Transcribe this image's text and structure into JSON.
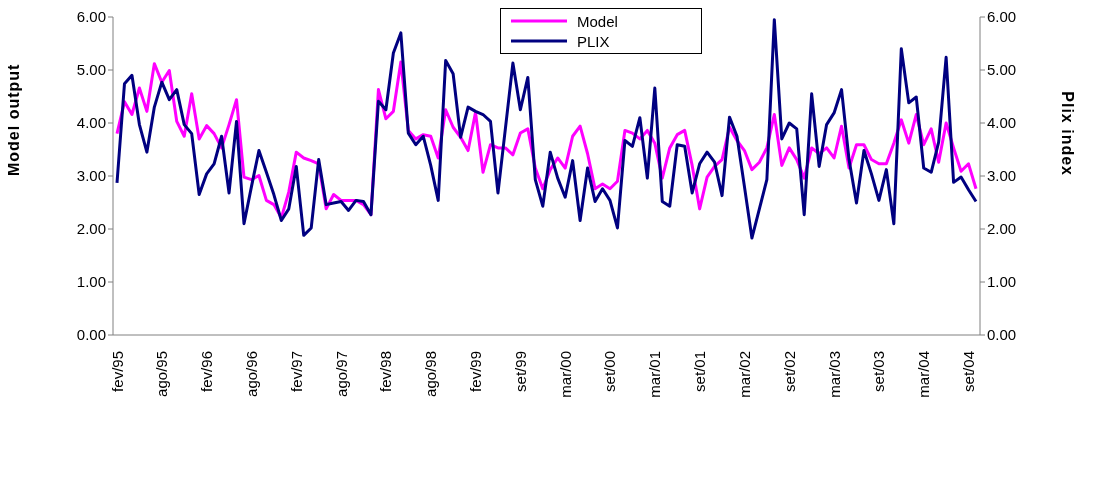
{
  "chart_data": {
    "type": "line",
    "xlabel": null,
    "ylabel": "Model output",
    "y2label": "Plix index",
    "categories": [
      "fev/95",
      null,
      null,
      null,
      null,
      null,
      "ago/95",
      null,
      null,
      null,
      null,
      null,
      "fev/96",
      null,
      null,
      null,
      null,
      null,
      "ago/96",
      null,
      null,
      null,
      null,
      null,
      "fev/97",
      null,
      null,
      null,
      null,
      null,
      "ago/97",
      null,
      null,
      null,
      null,
      null,
      "fev/98",
      null,
      null,
      null,
      null,
      null,
      "ago/98",
      null,
      null,
      null,
      null,
      null,
      "fev/99",
      null,
      null,
      null,
      null,
      null,
      "set/99",
      null,
      null,
      null,
      null,
      null,
      "mar/00",
      null,
      null,
      null,
      null,
      null,
      "set/00",
      null,
      null,
      null,
      null,
      null,
      "mar/01",
      null,
      null,
      null,
      null,
      null,
      "set/01",
      null,
      null,
      null,
      null,
      null,
      "mar/02",
      null,
      null,
      null,
      null,
      null,
      "set/02",
      null,
      null,
      null,
      null,
      null,
      "mar/03",
      null,
      null,
      null,
      null,
      null,
      "set/03",
      null,
      null,
      null,
      null,
      null,
      "mar/04",
      null,
      null,
      null,
      null,
      null,
      "set/04",
      null
    ],
    "series": [
      {
        "name": "Model",
        "color": "#ff00ff",
        "values": [
          3.8,
          4.4,
          4.16,
          4.66,
          4.22,
          5.12,
          4.77,
          4.99,
          4.03,
          3.75,
          4.55,
          3.7,
          3.95,
          3.8,
          3.53,
          3.97,
          4.44,
          2.98,
          2.93,
          3.01,
          2.54,
          2.46,
          2.21,
          2.7,
          3.45,
          3.34,
          3.29,
          3.23,
          2.38,
          2.65,
          2.54,
          2.54,
          2.54,
          2.46,
          2.27,
          4.63,
          4.08,
          4.22,
          5.15,
          3.86,
          3.7,
          3.78,
          3.75,
          3.34,
          4.25,
          3.92,
          3.73,
          3.48,
          4.2,
          3.07,
          3.59,
          3.53,
          3.53,
          3.4,
          3.81,
          3.89,
          3.15,
          2.76,
          3.12,
          3.34,
          3.15,
          3.75,
          3.94,
          3.42,
          2.76,
          2.85,
          2.76,
          2.9,
          3.86,
          3.81,
          3.7,
          3.86,
          3.62,
          2.96,
          3.53,
          3.78,
          3.86,
          3.2,
          2.38,
          2.98,
          3.18,
          3.31,
          3.92,
          3.67,
          3.48,
          3.12,
          3.26,
          3.53,
          4.16,
          3.2,
          3.53,
          3.31,
          2.96,
          3.53,
          3.42,
          3.53,
          3.34,
          3.94,
          3.15,
          3.59,
          3.59,
          3.31,
          3.23,
          3.23,
          3.62,
          4.06,
          3.62,
          4.16,
          3.59,
          3.89,
          3.26,
          4.0,
          3.53,
          3.09,
          3.23,
          2.76
        ]
      },
      {
        "name": "PLIX",
        "color": "#000080",
        "axis": "y2",
        "values": [
          2.87,
          4.74,
          4.9,
          3.97,
          3.45,
          4.3,
          4.77,
          4.44,
          4.63,
          3.97,
          3.8,
          2.65,
          3.04,
          3.23,
          3.75,
          2.68,
          4.03,
          2.1,
          2.8,
          3.48,
          3.07,
          2.65,
          2.16,
          2.38,
          3.18,
          1.88,
          2.02,
          3.31,
          2.46,
          2.49,
          2.52,
          2.35,
          2.54,
          2.52,
          2.27,
          4.41,
          4.25,
          5.32,
          5.7,
          3.81,
          3.59,
          3.75,
          3.2,
          2.54,
          5.18,
          4.93,
          3.73,
          4.3,
          4.22,
          4.16,
          4.03,
          2.68,
          3.9,
          5.13,
          4.25,
          4.86,
          2.93,
          2.43,
          3.45,
          2.96,
          2.6,
          3.29,
          2.16,
          3.15,
          2.52,
          2.76,
          2.54,
          2.02,
          3.67,
          3.56,
          4.1,
          2.96,
          4.66,
          2.52,
          2.43,
          3.59,
          3.56,
          2.68,
          3.23,
          3.45,
          3.26,
          2.63,
          4.11,
          3.75,
          2.8,
          1.83,
          2.38,
          2.93,
          5.95,
          3.7,
          4.0,
          3.89,
          2.27,
          4.55,
          3.18,
          3.97,
          4.19,
          4.63,
          3.31,
          2.49,
          3.48,
          3.04,
          2.54,
          3.12,
          2.1,
          5.4,
          4.38,
          4.49,
          3.15,
          3.07,
          3.64,
          5.24,
          2.88,
          2.98,
          2.74,
          2.52
        ]
      }
    ],
    "ylim": [
      0,
      6
    ],
    "yticks": [
      {
        "value": 0,
        "label": "0.00"
      },
      {
        "value": 1,
        "label": "1.00"
      },
      {
        "value": 2,
        "label": "2.00"
      },
      {
        "value": 3,
        "label": "3.00"
      },
      {
        "value": 4,
        "label": "4.00"
      },
      {
        "value": 5,
        "label": "5.00"
      },
      {
        "value": 6,
        "label": "6.00"
      }
    ],
    "y2lim": [
      0,
      6
    ],
    "y2ticks": [
      {
        "value": 0,
        "label": "0.00"
      },
      {
        "value": 1,
        "label": "1.00"
      },
      {
        "value": 2,
        "label": "2.00"
      },
      {
        "value": 3,
        "label": "3.00"
      },
      {
        "value": 4,
        "label": "4.00"
      },
      {
        "value": 5,
        "label": "5.00"
      },
      {
        "value": 6,
        "label": "6.00"
      }
    ],
    "grid": false,
    "legend": "top",
    "marker": "none",
    "line_style": "solid"
  }
}
